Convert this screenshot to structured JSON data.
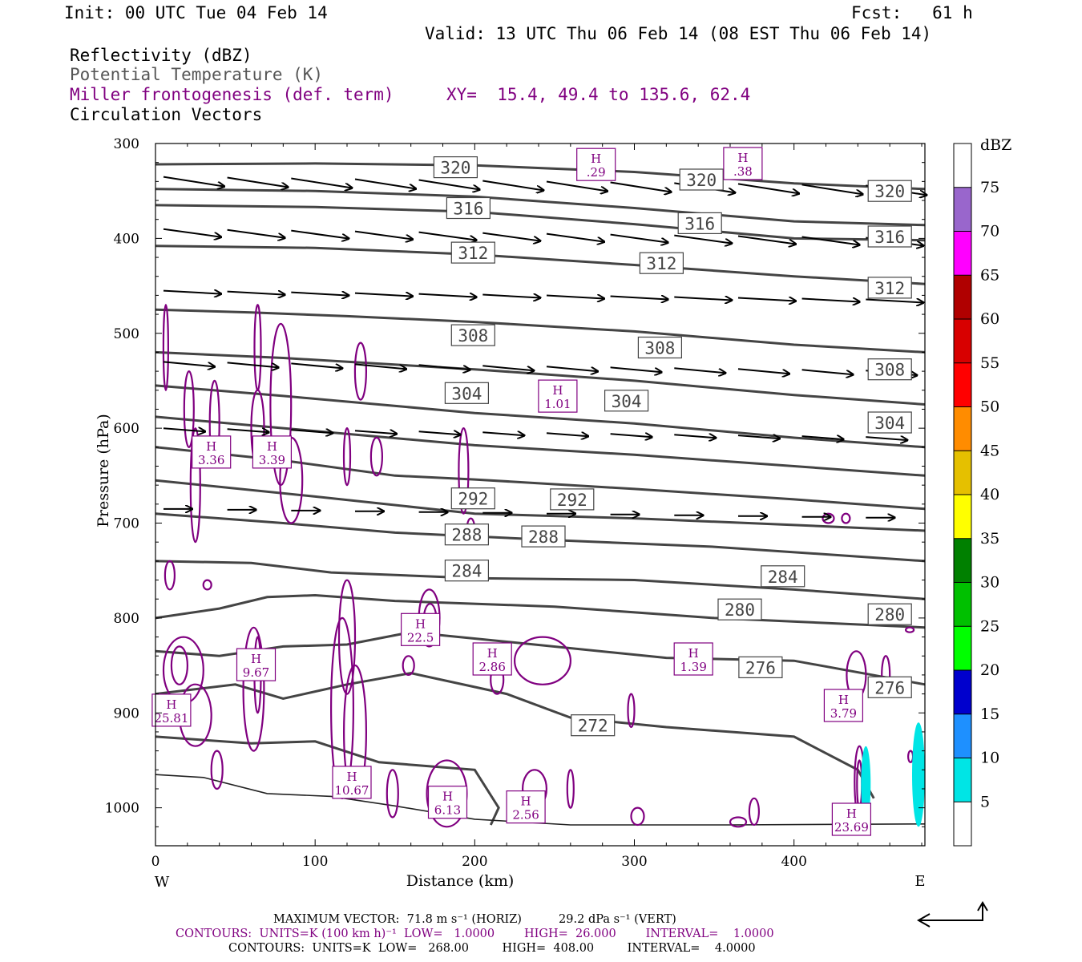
{
  "header": {
    "init": "Init: 00 UTC Tue 04 Feb 14",
    "fcst": "Fcst:   61 h",
    "valid": "Valid: 13 UTC Thu 06 Feb 14 (08 EST Thu 06 Feb 14)",
    "field1": "Reflectivity (dBZ)",
    "field2": "Potential Temperature (K)",
    "field3": "Miller frontogenesis (def. term)",
    "xy": "XY=  15.4, 49.4 to 135.6, 62.4",
    "field4": "Circulation Vectors"
  },
  "footer": {
    "max_vector": "MAXIMUM VECTOR:  71.8 m s⁻¹ (HORIZ)          29.2 dPa s⁻¹ (VERT)",
    "contours_fronto": "CONTOURS:  UNITS=K (100 km h)⁻¹  LOW=   1.0000        HIGH=  26.000        INTERVAL=    1.0000",
    "contours_theta": "CONTOURS:  UNITS=K  LOW=   268.00         HIGH=  408.00         INTERVAL=    4.0000"
  },
  "chart_data": {
    "type": "cross-section",
    "xlabel": "Distance (km)",
    "ylabel": "Pressure (hPa)",
    "xlim": [
      0,
      482
    ],
    "ylim": [
      300,
      1040
    ],
    "x_ticks": [
      0,
      100,
      200,
      300,
      400
    ],
    "y_ticks": [
      300,
      400,
      500,
      600,
      700,
      800,
      900,
      1000
    ],
    "x_end_labels": {
      "left": "W",
      "right": "E"
    },
    "colorbar": {
      "unit": "dBZ",
      "levels": [
        "5",
        "10",
        "15",
        "20",
        "25",
        "30",
        "35",
        "40",
        "45",
        "50",
        "55",
        "60",
        "65",
        "70",
        "75"
      ],
      "colors": [
        "#ffffff",
        "#00e5e5",
        "#1e90ff",
        "#0000cd",
        "#00ff00",
        "#00c000",
        "#008000",
        "#ffff00",
        "#e5c000",
        "#ff8c00",
        "#ff0000",
        "#d80000",
        "#b00000",
        "#ff00ff",
        "#9966cc",
        "#ffffff"
      ]
    },
    "theta_labels": [
      {
        "label": "320",
        "x": 188,
        "p": 325
      },
      {
        "label": "320",
        "x": 342,
        "p": 338
      },
      {
        "label": "320",
        "x": 460,
        "p": 350
      },
      {
        "label": "316",
        "x": 196,
        "p": 368
      },
      {
        "label": "316",
        "x": 341,
        "p": 384
      },
      {
        "label": "316",
        "x": 460,
        "p": 398
      },
      {
        "label": "312",
        "x": 199,
        "p": 415
      },
      {
        "label": "312",
        "x": 317,
        "p": 426
      },
      {
        "label": "312",
        "x": 460,
        "p": 452
      },
      {
        "label": "308",
        "x": 199,
        "p": 502
      },
      {
        "label": "308",
        "x": 316,
        "p": 515
      },
      {
        "label": "308",
        "x": 460,
        "p": 538
      },
      {
        "label": "304",
        "x": 195,
        "p": 563
      },
      {
        "label": "304",
        "x": 295,
        "p": 571
      },
      {
        "label": "304",
        "x": 460,
        "p": 594
      },
      {
        "label": "292",
        "x": 199,
        "p": 674
      },
      {
        "label": "292",
        "x": 261,
        "p": 675
      },
      {
        "label": "288",
        "x": 195,
        "p": 712
      },
      {
        "label": "288",
        "x": 243,
        "p": 714
      },
      {
        "label": "284",
        "x": 195,
        "p": 750
      },
      {
        "label": "284",
        "x": 393,
        "p": 756
      },
      {
        "label": "280",
        "x": 366,
        "p": 791
      },
      {
        "label": "280",
        "x": 460,
        "p": 796
      },
      {
        "label": "276",
        "x": 379,
        "p": 852
      },
      {
        "label": "276",
        "x": 460,
        "p": 873
      },
      {
        "label": "272",
        "x": 274,
        "p": 913
      }
    ],
    "frontogenesis_maxima": [
      {
        "label": "H",
        "value": "3.36",
        "x": 35,
        "p": 626
      },
      {
        "label": "H",
        "value": "3.39",
        "x": 73,
        "p": 626
      },
      {
        "label": "H",
        "value": ".29",
        "x": 276,
        "p": 323
      },
      {
        "label": "H",
        "value": ".38",
        "x": 368,
        "p": 322
      },
      {
        "label": "H",
        "value": "1.01",
        "x": 252,
        "p": 567
      },
      {
        "label": "H",
        "value": "22.5",
        "x": 166,
        "p": 813
      },
      {
        "label": "H",
        "value": "2.86",
        "x": 211,
        "p": 844
      },
      {
        "label": "H",
        "value": "1.39",
        "x": 337,
        "p": 844
      },
      {
        "label": "H",
        "value": "9.67",
        "x": 63,
        "p": 850
      },
      {
        "label": "H",
        "value": "25.81",
        "x": 10,
        "p": 898
      },
      {
        "label": "H",
        "value": "3.79",
        "x": 431,
        "p": 893
      },
      {
        "label": "H",
        "value": "10.67",
        "x": 123,
        "p": 974
      },
      {
        "label": "H",
        "value": "6.13",
        "x": 183,
        "p": 995
      },
      {
        "label": "H",
        "value": "2.56",
        "x": 232,
        "p": 1000
      },
      {
        "label": "H",
        "value": "23.69",
        "x": 436,
        "p": 1013
      }
    ]
  }
}
